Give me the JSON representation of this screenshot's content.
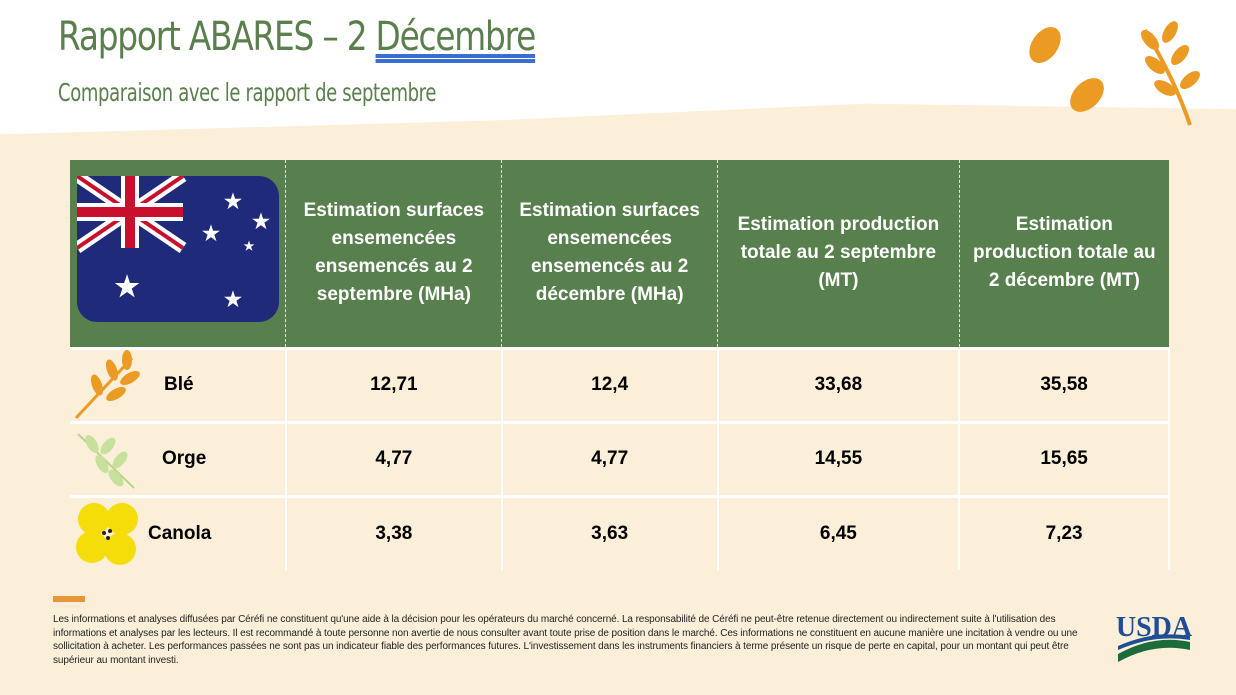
{
  "header": {
    "title_prefix": "Rapport ABARES – 2 ",
    "title_month": "Décembre",
    "subtitle": "Comparaison avec le rapport de septembre"
  },
  "table": {
    "columns": [
      "Estimation surfaces ensemencées ensemencés au 2 septembre (MHa)",
      "Estimation surfaces ensemencées ensemencés au 2 décembre (MHa)",
      "Estimation production totale au 2 septembre (MT)",
      "Estimation production totale au 2 décembre (MT)"
    ],
    "rows": [
      {
        "crop": "Blé",
        "values": [
          "12,71",
          "12,4",
          "33,68",
          "35,58"
        ]
      },
      {
        "crop": "Orge",
        "values": [
          "4,77",
          "4,77",
          "14,55",
          "15,65"
        ]
      },
      {
        "crop": "Canola",
        "values": [
          "3,38",
          "3,63",
          "6,45",
          "7,23"
        ]
      }
    ]
  },
  "colors": {
    "header_green": "#587f4e",
    "accent": "#e8963a",
    "background": "#fbefd9"
  },
  "footer": {
    "disclaimer": "Les informations et analyses diffusées par Céréfi ne constituent qu'une aide à la décision pour les opérateurs du marché concerné. La responsabilité de Céréfi ne peut-être retenue directement ou indirectement suite à l'utilisation des informations et analyses par les lecteurs. Il est recommandé à toute personne non avertie de nous consulter avant  toute  prise de position  dans le marché.  Ces informations ne constituent en  aucune manière une incitation à vendre ou une sollicitation à acheter. Les performances passées ne sont pas un indicateur fiable des performances futures. L'investissement dans les instruments financiers à terme présente un risque de perte en capital, pour un montant qui peut être supérieur au montant investi.",
    "logo_text": "USDA"
  }
}
